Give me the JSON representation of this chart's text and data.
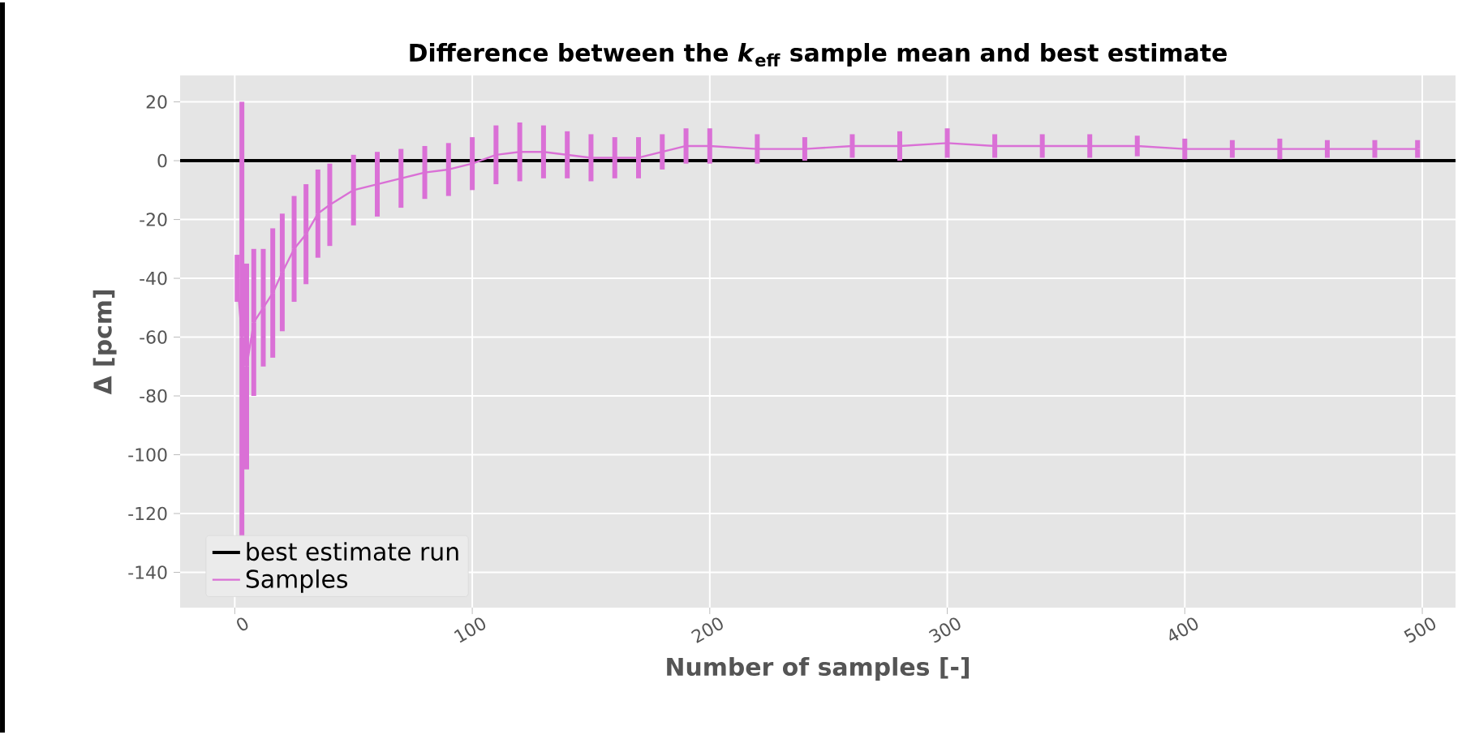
{
  "chart_data": {
    "type": "line",
    "title": "Difference between the *k*$_{eff}$ sample mean and best estimate",
    "xlabel": "Number of samples [-]",
    "ylabel": "Δ [pcm]",
    "xlim": [
      -23,
      514
    ],
    "ylim": [
      -152,
      29
    ],
    "xticks": [
      0,
      100,
      200,
      300,
      400,
      500
    ],
    "yticks": [
      -140,
      -120,
      -100,
      -80,
      -60,
      -40,
      -20,
      0,
      20
    ],
    "grid": true,
    "legend": "bottom left",
    "marker": "none",
    "line_style": "solid",
    "ref_lines": [
      {
        "axis": "y",
        "value": 0,
        "label": "best estimate run",
        "color": "#000000",
        "line_style": "solid"
      }
    ],
    "series": [
      {
        "name": "Samples",
        "color": "#da70d6",
        "x": [
          1,
          3,
          5,
          8,
          12,
          16,
          20,
          25,
          30,
          35,
          40,
          50,
          60,
          70,
          80,
          90,
          100,
          110,
          120,
          130,
          140,
          150,
          160,
          170,
          180,
          190,
          200,
          220,
          240,
          260,
          280,
          300,
          320,
          340,
          360,
          380,
          400,
          420,
          440,
          460,
          480,
          498
        ],
        "values": [
          -40,
          -60,
          -70,
          -55,
          -50,
          -45,
          -38,
          -30,
          -25,
          -18,
          -15,
          -10,
          -8,
          -6,
          -4,
          -3,
          -1,
          2,
          3,
          3,
          2,
          1,
          1,
          1,
          3,
          5,
          5,
          4,
          4,
          5,
          5,
          6,
          5,
          5,
          5,
          5,
          4,
          4,
          4,
          4,
          4,
          4
        ],
        "errors": [
          8,
          80,
          35,
          25,
          20,
          22,
          20,
          18,
          17,
          15,
          14,
          12,
          11,
          10,
          9,
          9,
          9,
          10,
          10,
          9,
          8,
          8,
          7,
          7,
          6,
          6,
          6,
          5,
          4,
          4,
          5,
          5,
          4,
          4,
          4,
          3.5,
          3.5,
          3,
          3.5,
          3,
          3,
          3
        ]
      }
    ]
  }
}
